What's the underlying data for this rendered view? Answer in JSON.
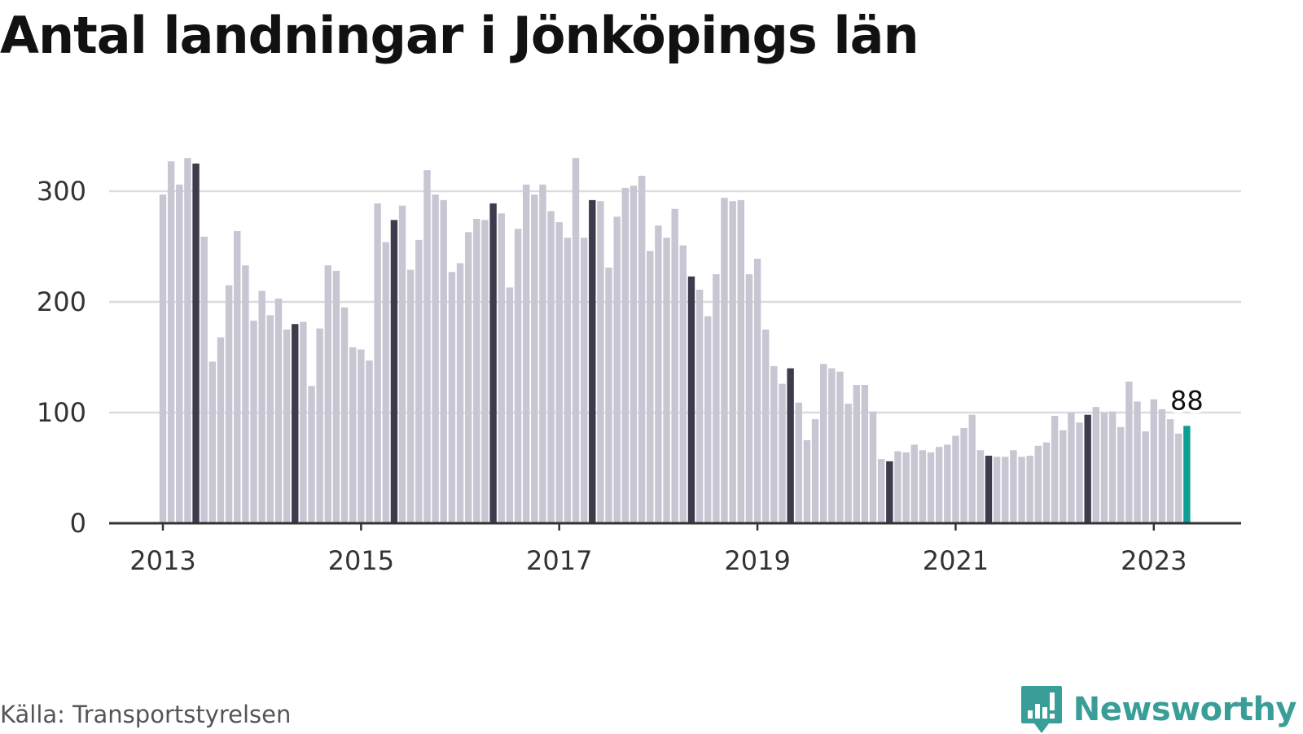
{
  "chart_data": {
    "type": "bar",
    "title": "Antal landningar i Jönköpings län",
    "xlabel": "",
    "ylabel": "",
    "ylim": [
      0,
      330
    ],
    "yticks": [
      "0",
      "100",
      "200",
      "300"
    ],
    "xticks": [
      "2013",
      "2015",
      "2017",
      "2019",
      "2021",
      "2023"
    ],
    "grid": true,
    "legend": "none",
    "start": "2013-01",
    "end": "2023-05",
    "values": [
      297,
      327,
      306,
      330,
      325,
      259,
      146,
      168,
      215,
      264,
      233,
      183,
      210,
      188,
      203,
      175,
      180,
      182,
      124,
      176,
      233,
      228,
      195,
      159,
      157,
      147,
      289,
      254,
      274,
      287,
      229,
      256,
      319,
      297,
      292,
      227,
      235,
      263,
      275,
      274,
      289,
      280,
      213,
      266,
      306,
      297,
      306,
      282,
      272,
      258,
      330,
      258,
      292,
      291,
      231,
      277,
      303,
      305,
      314,
      246,
      269,
      258,
      284,
      251,
      223,
      211,
      187,
      225,
      294,
      291,
      292,
      225,
      239,
      175,
      142,
      126,
      140,
      109,
      75,
      94,
      144,
      140,
      137,
      108,
      125,
      125,
      101,
      58,
      56,
      65,
      64,
      71,
      66,
      64,
      69,
      71,
      79,
      86,
      98,
      66,
      61,
      60,
      60,
      66,
      60,
      61,
      70,
      73,
      97,
      84,
      100,
      91,
      98,
      105,
      100,
      101,
      87,
      128,
      110,
      83,
      112,
      103,
      94,
      81,
      88
    ],
    "highlight_color": "#3d3c4d",
    "base_color": "#c7c6d2",
    "latest_color": "#0e9e94",
    "latest_label": "88"
  },
  "source": {
    "text": "Källa: Transportstyrelsen"
  },
  "brand": {
    "name": "Newsworthy",
    "icon": "bar-chart-speech-bubble-icon",
    "color": "#3a9e98"
  }
}
